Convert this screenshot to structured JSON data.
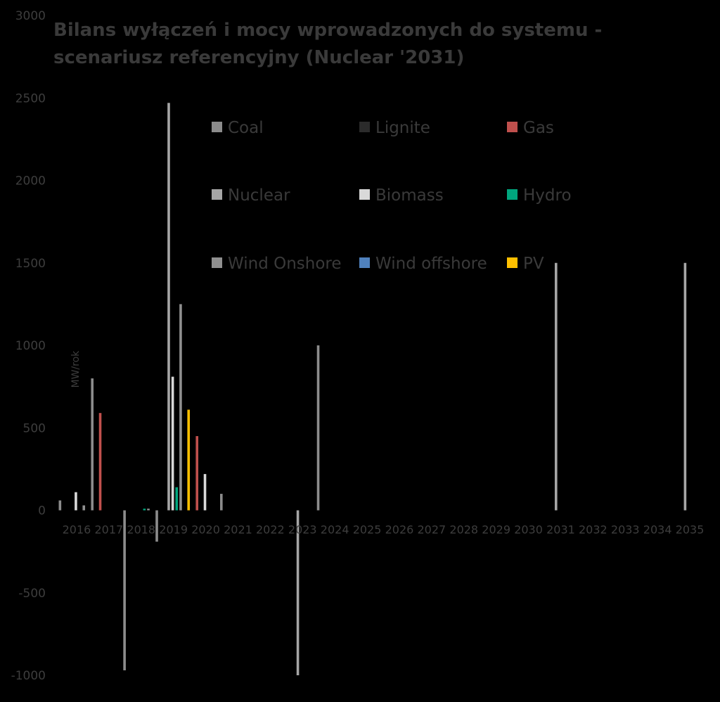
{
  "chart_data": {
    "type": "bar",
    "title_lines": [
      "Bilans wyłączeń i mocy wprowadzonych do systemu -",
      "scenariusz referencyjny (Nuclear '2031)"
    ],
    "ylabel": "MW/rok",
    "xlabel": "",
    "ylim": [
      -1000,
      3000
    ],
    "yticks": [
      3000,
      2500,
      2000,
      1500,
      1000,
      500,
      0,
      -500,
      -1000
    ],
    "grid": false,
    "legend_position": "top-center",
    "categories": [
      "2016",
      "2017",
      "2018",
      "2019",
      "2020",
      "2021",
      "2022",
      "2023",
      "2024",
      "2025",
      "2026",
      "2027",
      "2028",
      "2029",
      "2030",
      "2031",
      "2032",
      "2033",
      "2034",
      "2035"
    ],
    "series": [
      {
        "name": "Coal",
        "color": "#8c8c8c",
        "values": [
          60,
          800,
          -970,
          -190,
          0,
          100,
          0,
          0,
          1000,
          0,
          0,
          0,
          0,
          0,
          0,
          0,
          0,
          0,
          0,
          0
        ]
      },
      {
        "name": "Lignite",
        "color": "#2b2b2b",
        "values": [
          0,
          0,
          0,
          0,
          0,
          0,
          0,
          0,
          0,
          0,
          0,
          0,
          0,
          0,
          0,
          0,
          0,
          0,
          0,
          0
        ]
      },
      {
        "name": "Gas",
        "color": "#c0504d",
        "values": [
          0,
          590,
          0,
          0,
          450,
          0,
          0,
          0,
          0,
          0,
          0,
          0,
          0,
          0,
          0,
          0,
          0,
          0,
          0,
          0
        ]
      },
      {
        "name": "Nuclear",
        "color": "#a6a6a6",
        "values": [
          0,
          0,
          0,
          2470,
          0,
          0,
          0,
          -1000,
          0,
          0,
          0,
          0,
          0,
          0,
          0,
          1500,
          0,
          0,
          0,
          1500
        ]
      },
      {
        "name": "Biomass",
        "color": "#d9d9d9",
        "values": [
          110,
          0,
          0,
          810,
          220,
          0,
          0,
          0,
          0,
          0,
          0,
          0,
          0,
          0,
          0,
          0,
          0,
          0,
          0,
          0
        ]
      },
      {
        "name": "Hydro",
        "color": "#00a67e",
        "values": [
          0,
          0,
          10,
          140,
          0,
          0,
          0,
          0,
          0,
          0,
          0,
          0,
          0,
          0,
          0,
          0,
          0,
          0,
          0,
          0
        ]
      },
      {
        "name": "Wind Onshore",
        "color": "#909090",
        "values": [
          30,
          0,
          10,
          1250,
          0,
          0,
          0,
          0,
          0,
          0,
          0,
          0,
          0,
          0,
          0,
          0,
          0,
          0,
          0,
          0
        ]
      },
      {
        "name": "Wind offshore",
        "color": "#4f81bd",
        "values": [
          0,
          0,
          0,
          0,
          0,
          0,
          0,
          0,
          0,
          0,
          0,
          0,
          0,
          0,
          0,
          0,
          0,
          0,
          0,
          0
        ]
      },
      {
        "name": "PV",
        "color": "#ffc000",
        "values": [
          0,
          0,
          0,
          610,
          0,
          0,
          0,
          0,
          0,
          0,
          0,
          0,
          0,
          0,
          0,
          0,
          0,
          0,
          0,
          0
        ]
      }
    ]
  }
}
